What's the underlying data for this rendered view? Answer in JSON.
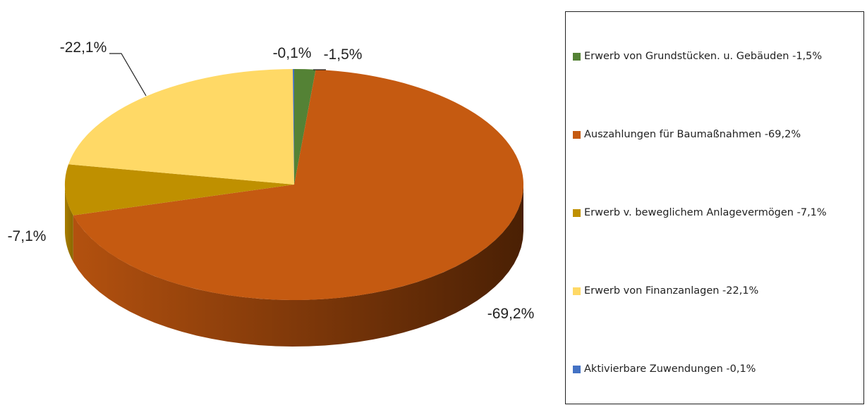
{
  "chart_data": {
    "type": "pie",
    "style": "3d",
    "title": "",
    "legend_position": "right",
    "slices": [
      {
        "label": "Erwerb von Grundstücken. u. Gebäuden -1,5%",
        "data_label": "-1,5%",
        "value": -1.5,
        "color": "#548235"
      },
      {
        "label": "Auszahlungen für Baumaßnahmen -69,2%",
        "data_label": "-69,2%",
        "value": -69.2,
        "color": "#C55A11"
      },
      {
        "label": "Erwerb v. beweglichem Anlagevermögen -7,1%",
        "data_label": "-7,1%",
        "value": -7.1,
        "color": "#BF9000"
      },
      {
        "label": "Erwerb von Finanzanlagen -22,1%",
        "data_label": "-22,1%",
        "value": -22.1,
        "color": "#FFD966"
      },
      {
        "label": "Aktivierbare Zuwendungen -0,1%",
        "data_label": "-0,1%",
        "value": -0.1,
        "color": "#4472C4"
      }
    ]
  }
}
